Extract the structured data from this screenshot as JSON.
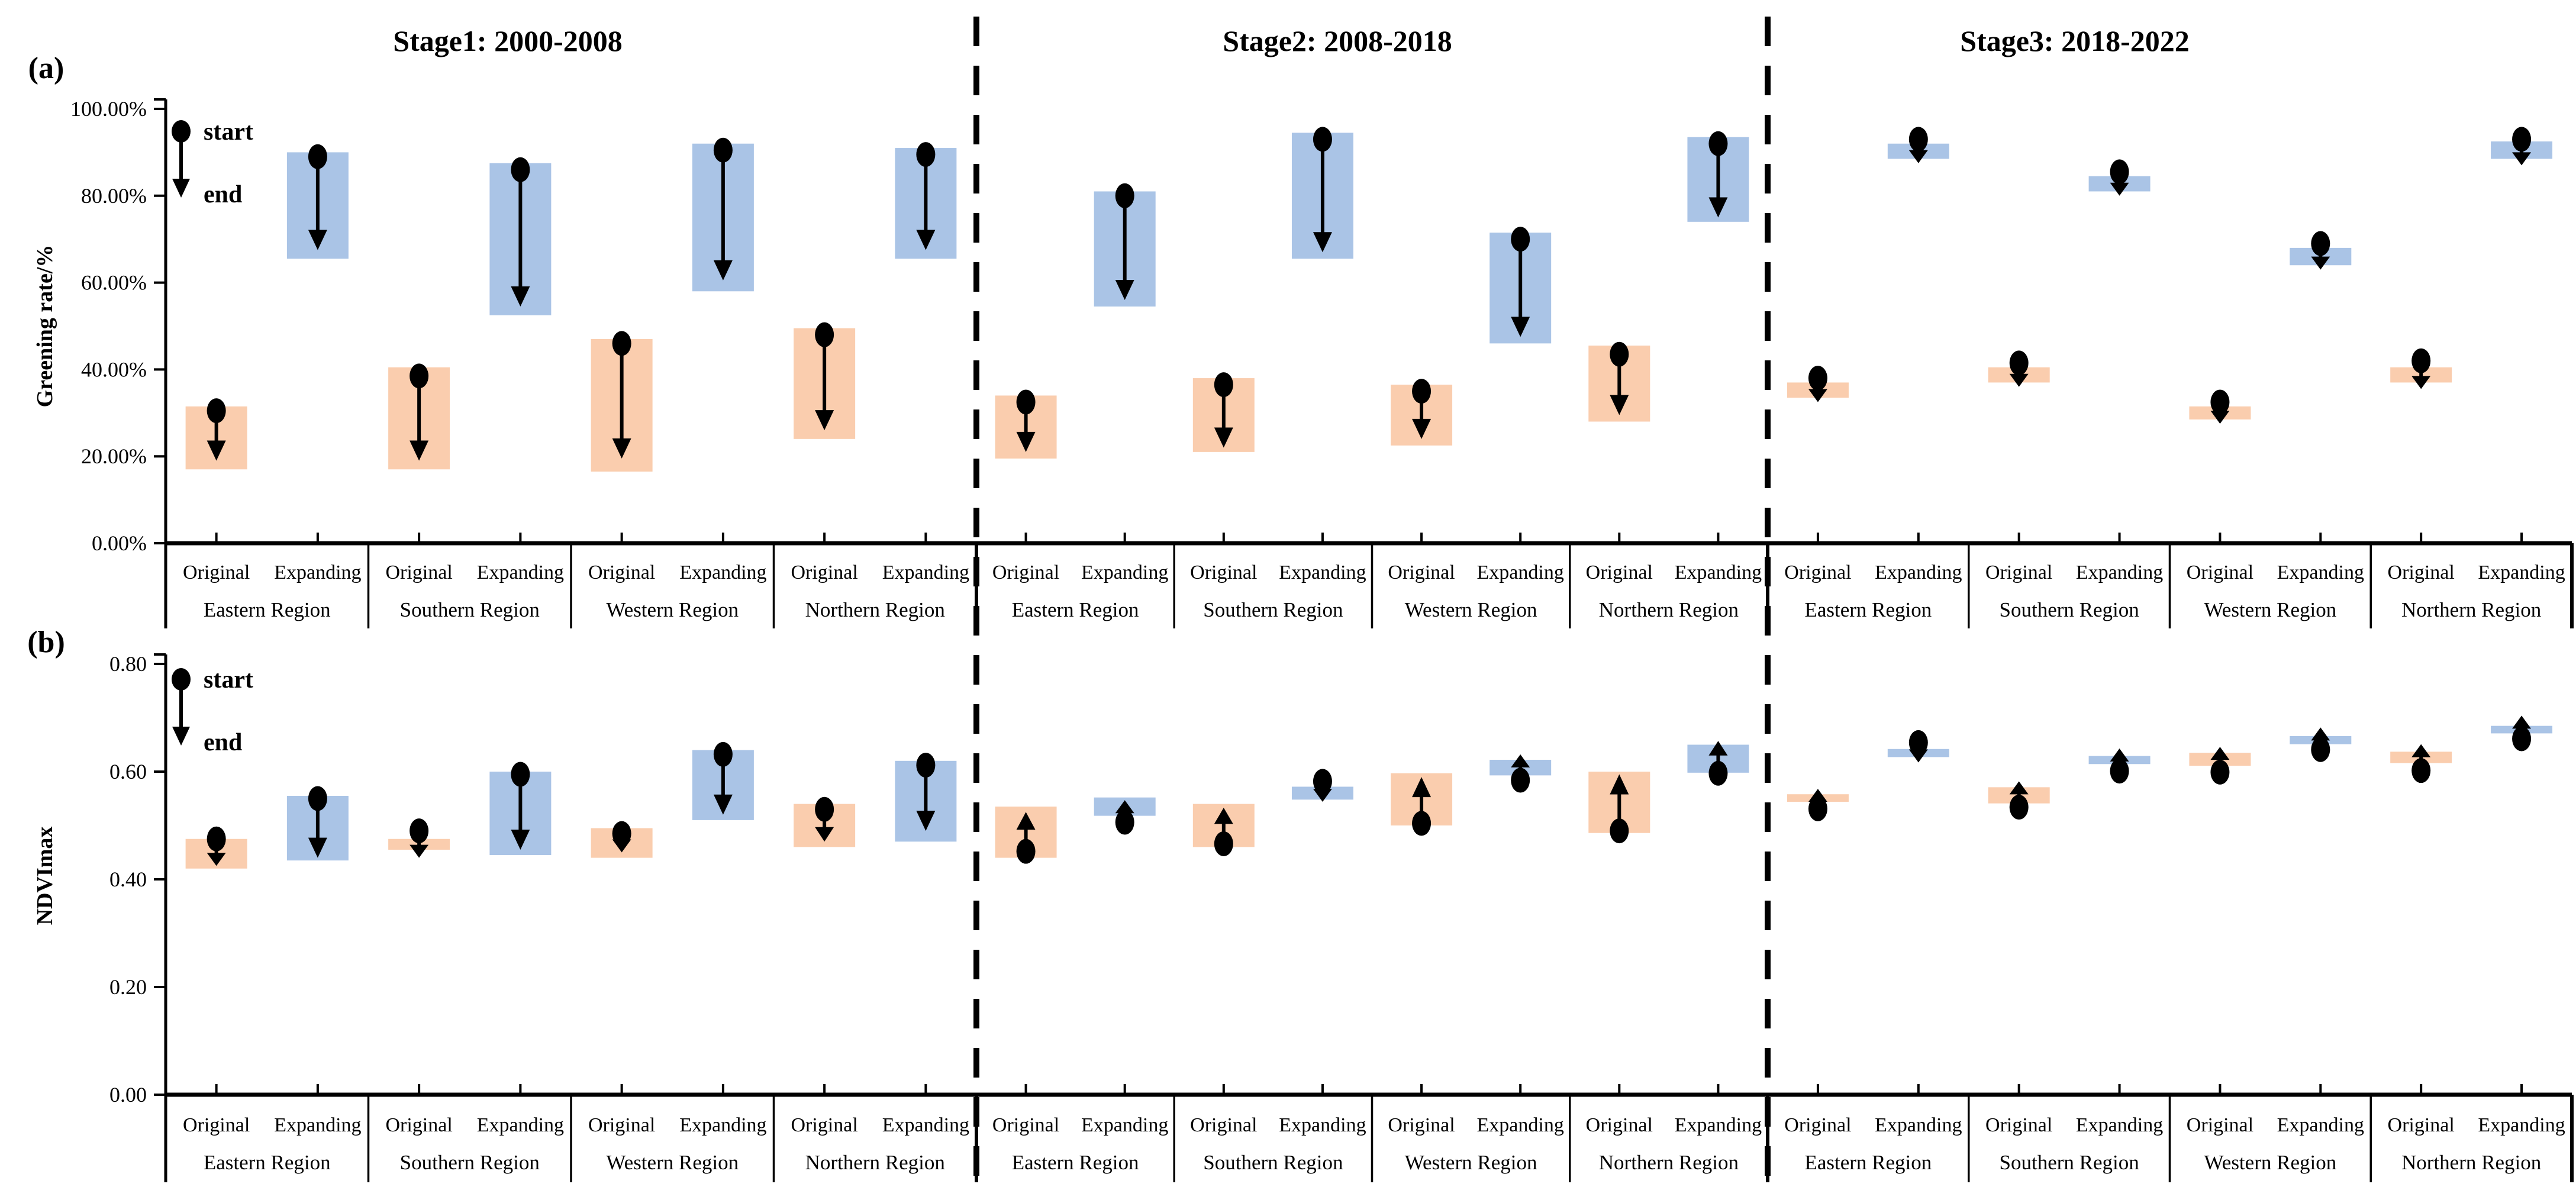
{
  "chart_data": {
    "type": "bar",
    "subtype": "floating-range-bars-with-start-end-arrows",
    "stage_titles": [
      "Stage1: 2000-2008",
      "Stage2: 2008-2018",
      "Stage3: 2018-2022"
    ],
    "regions": [
      "Eastern Region",
      "Southern Region",
      "Western Region",
      "Northern Region"
    ],
    "categories": [
      "Original",
      "Expanding"
    ],
    "legend": {
      "start_label": "start",
      "end_label": "end"
    },
    "colors": {
      "original_fill": "#FACDAE",
      "expanding_fill": "#AAC4E6",
      "marker": "#000000",
      "axis": "#000000",
      "background": "#ffffff"
    },
    "panels": [
      {
        "id": "a",
        "corner_label": "(a)",
        "ylabel": "Greening rate/%",
        "ylim": [
          0,
          100
        ],
        "ytick_values": [
          0,
          20,
          40,
          60,
          80,
          100
        ],
        "ytick_labels": [
          "0.00%",
          "20.00%",
          "40.00%",
          "60.00%",
          "80.00%",
          "100.00%"
        ],
        "grid": false,
        "legend_position": "top-left-inside",
        "stages": [
          {
            "title": "Stage1: 2000-2008",
            "groups": [
              {
                "region": "Eastern Region",
                "bars": [
                  {
                    "category": "Original",
                    "band": [
                      17,
                      31.5
                    ],
                    "start": 30.5,
                    "end": 19
                  },
                  {
                    "category": "Expanding",
                    "band": [
                      65.5,
                      90
                    ],
                    "start": 89,
                    "end": 67.5
                  }
                ]
              },
              {
                "region": "Southern Region",
                "bars": [
                  {
                    "category": "Original",
                    "band": [
                      17,
                      40.5
                    ],
                    "start": 38.5,
                    "end": 19
                  },
                  {
                    "category": "Expanding",
                    "band": [
                      52.5,
                      87.5
                    ],
                    "start": 86,
                    "end": 54.5
                  }
                ]
              },
              {
                "region": "Western Region",
                "bars": [
                  {
                    "category": "Original",
                    "band": [
                      16.5,
                      47
                    ],
                    "start": 46,
                    "end": 19.5
                  },
                  {
                    "category": "Expanding",
                    "band": [
                      58,
                      92
                    ],
                    "start": 90.5,
                    "end": 60.5
                  }
                ]
              },
              {
                "region": "Northern Region",
                "bars": [
                  {
                    "category": "Original",
                    "band": [
                      24,
                      49.5
                    ],
                    "start": 48,
                    "end": 26
                  },
                  {
                    "category": "Expanding",
                    "band": [
                      65.5,
                      91
                    ],
                    "start": 89.5,
                    "end": 67.5
                  }
                ]
              }
            ]
          },
          {
            "title": "Stage2: 2008-2018",
            "groups": [
              {
                "region": "Eastern Region",
                "bars": [
                  {
                    "category": "Original",
                    "band": [
                      19.5,
                      34
                    ],
                    "start": 32.5,
                    "end": 21
                  },
                  {
                    "category": "Expanding",
                    "band": [
                      54.5,
                      81
                    ],
                    "start": 80,
                    "end": 56
                  }
                ]
              },
              {
                "region": "Southern Region",
                "bars": [
                  {
                    "category": "Original",
                    "band": [
                      21,
                      38
                    ],
                    "start": 36.5,
                    "end": 22
                  },
                  {
                    "category": "Expanding",
                    "band": [
                      65.5,
                      94.5
                    ],
                    "start": 93,
                    "end": 67
                  }
                ]
              },
              {
                "region": "Western Region",
                "bars": [
                  {
                    "category": "Original",
                    "band": [
                      22.5,
                      36.5
                    ],
                    "start": 35,
                    "end": 24
                  },
                  {
                    "category": "Expanding",
                    "band": [
                      46,
                      71.5
                    ],
                    "start": 70,
                    "end": 47.5
                  }
                ]
              },
              {
                "region": "Northern Region",
                "bars": [
                  {
                    "category": "Original",
                    "band": [
                      28,
                      45.5
                    ],
                    "start": 43.5,
                    "end": 29.5
                  },
                  {
                    "category": "Expanding",
                    "band": [
                      74,
                      93.5
                    ],
                    "start": 92,
                    "end": 75
                  }
                ]
              }
            ]
          },
          {
            "title": "Stage3: 2018-2022",
            "groups": [
              {
                "region": "Eastern Region",
                "bars": [
                  {
                    "category": "Original",
                    "band": [
                      33.5,
                      37
                    ],
                    "start": 38,
                    "end": 32.5
                  },
                  {
                    "category": "Expanding",
                    "band": [
                      88.5,
                      92
                    ],
                    "start": 93,
                    "end": 87.5
                  }
                ]
              },
              {
                "region": "Southern Region",
                "bars": [
                  {
                    "category": "Original",
                    "band": [
                      37,
                      40.5
                    ],
                    "start": 41.5,
                    "end": 36
                  },
                  {
                    "category": "Expanding",
                    "band": [
                      81,
                      84.5
                    ],
                    "start": 85.5,
                    "end": 80
                  }
                ]
              },
              {
                "region": "Western Region",
                "bars": [
                  {
                    "category": "Original",
                    "band": [
                      28.5,
                      31.5
                    ],
                    "start": 32.5,
                    "end": 27.5
                  },
                  {
                    "category": "Expanding",
                    "band": [
                      64,
                      68
                    ],
                    "start": 69,
                    "end": 63
                  }
                ]
              },
              {
                "region": "Northern Region",
                "bars": [
                  {
                    "category": "Original",
                    "band": [
                      37,
                      40.5
                    ],
                    "start": 42,
                    "end": 35.5
                  },
                  {
                    "category": "Expanding",
                    "band": [
                      88.5,
                      92.5
                    ],
                    "start": 93,
                    "end": 87
                  }
                ]
              }
            ]
          }
        ]
      },
      {
        "id": "b",
        "corner_label": "(b)",
        "ylabel": "NDVImax",
        "ylim": [
          0,
          0.8
        ],
        "ytick_values": [
          0,
          0.2,
          0.4,
          0.6,
          0.8
        ],
        "ytick_labels": [
          "0.00",
          "0.20",
          "0.40",
          "0.60",
          "0.80"
        ],
        "grid": false,
        "legend_position": "top-left-inside",
        "stages": [
          {
            "title": "Stage1: 2000-2008",
            "groups": [
              {
                "region": "Eastern Region",
                "bars": [
                  {
                    "category": "Original",
                    "band": [
                      0.42,
                      0.475
                    ],
                    "start": 0.475,
                    "end": 0.425
                  },
                  {
                    "category": "Expanding",
                    "band": [
                      0.435,
                      0.555
                    ],
                    "start": 0.55,
                    "end": 0.44
                  }
                ]
              },
              {
                "region": "Southern Region",
                "bars": [
                  {
                    "category": "Original",
                    "band": [
                      0.455,
                      0.475
                    ],
                    "start": 0.49,
                    "end": 0.44
                  },
                  {
                    "category": "Expanding",
                    "band": [
                      0.445,
                      0.6
                    ],
                    "start": 0.595,
                    "end": 0.455
                  }
                ]
              },
              {
                "region": "Western Region",
                "bars": [
                  {
                    "category": "Original",
                    "band": [
                      0.44,
                      0.495
                    ],
                    "start": 0.485,
                    "end": 0.45
                  },
                  {
                    "category": "Expanding",
                    "band": [
                      0.51,
                      0.64
                    ],
                    "start": 0.632,
                    "end": 0.52
                  }
                ]
              },
              {
                "region": "Northern Region",
                "bars": [
                  {
                    "category": "Original",
                    "band": [
                      0.46,
                      0.54
                    ],
                    "start": 0.53,
                    "end": 0.47
                  },
                  {
                    "category": "Expanding",
                    "band": [
                      0.47,
                      0.62
                    ],
                    "start": 0.612,
                    "end": 0.49
                  }
                ]
              }
            ]
          },
          {
            "title": "Stage2: 2008-2018",
            "groups": [
              {
                "region": "Eastern Region",
                "bars": [
                  {
                    "category": "Original",
                    "band": [
                      0.44,
                      0.535
                    ],
                    "start": 0.452,
                    "end": 0.525
                  },
                  {
                    "category": "Expanding",
                    "band": [
                      0.518,
                      0.552
                    ],
                    "start": 0.506,
                    "end": 0.547
                  }
                ]
              },
              {
                "region": "Southern Region",
                "bars": [
                  {
                    "category": "Original",
                    "band": [
                      0.46,
                      0.54
                    ],
                    "start": 0.466,
                    "end": 0.533
                  },
                  {
                    "category": "Expanding",
                    "band": [
                      0.548,
                      0.572
                    ],
                    "start": 0.582,
                    "end": 0.544
                  }
                ]
              },
              {
                "region": "Western Region",
                "bars": [
                  {
                    "category": "Original",
                    "band": [
                      0.5,
                      0.597
                    ],
                    "start": 0.504,
                    "end": 0.59
                  },
                  {
                    "category": "Expanding",
                    "band": [
                      0.593,
                      0.622
                    ],
                    "start": 0.584,
                    "end": 0.632
                  }
                ]
              },
              {
                "region": "Northern Region",
                "bars": [
                  {
                    "category": "Original",
                    "band": [
                      0.486,
                      0.6
                    ],
                    "start": 0.49,
                    "end": 0.595
                  },
                  {
                    "category": "Expanding",
                    "band": [
                      0.598,
                      0.65
                    ],
                    "start": 0.597,
                    "end": 0.657
                  }
                ]
              }
            ]
          },
          {
            "title": "Stage3: 2018-2022",
            "groups": [
              {
                "region": "Eastern Region",
                "bars": [
                  {
                    "category": "Original",
                    "band": [
                      0.544,
                      0.558
                    ],
                    "start": 0.531,
                    "end": 0.568
                  },
                  {
                    "category": "Expanding",
                    "band": [
                      0.627,
                      0.642
                    ],
                    "start": 0.654,
                    "end": 0.617
                  }
                ]
              },
              {
                "region": "Southern Region",
                "bars": [
                  {
                    "category": "Original",
                    "band": [
                      0.541,
                      0.571
                    ],
                    "start": 0.534,
                    "end": 0.582
                  },
                  {
                    "category": "Expanding",
                    "band": [
                      0.614,
                      0.629
                    ],
                    "start": 0.601,
                    "end": 0.643
                  }
                ]
              },
              {
                "region": "Western Region",
                "bars": [
                  {
                    "category": "Original",
                    "band": [
                      0.611,
                      0.635
                    ],
                    "start": 0.599,
                    "end": 0.646
                  },
                  {
                    "category": "Expanding",
                    "band": [
                      0.651,
                      0.666
                    ],
                    "start": 0.641,
                    "end": 0.682
                  }
                ]
              },
              {
                "region": "Northern Region",
                "bars": [
                  {
                    "category": "Original",
                    "band": [
                      0.616,
                      0.637
                    ],
                    "start": 0.602,
                    "end": 0.651
                  },
                  {
                    "category": "Expanding",
                    "band": [
                      0.671,
                      0.685
                    ],
                    "start": 0.661,
                    "end": 0.704
                  }
                ]
              }
            ]
          }
        ]
      }
    ]
  }
}
